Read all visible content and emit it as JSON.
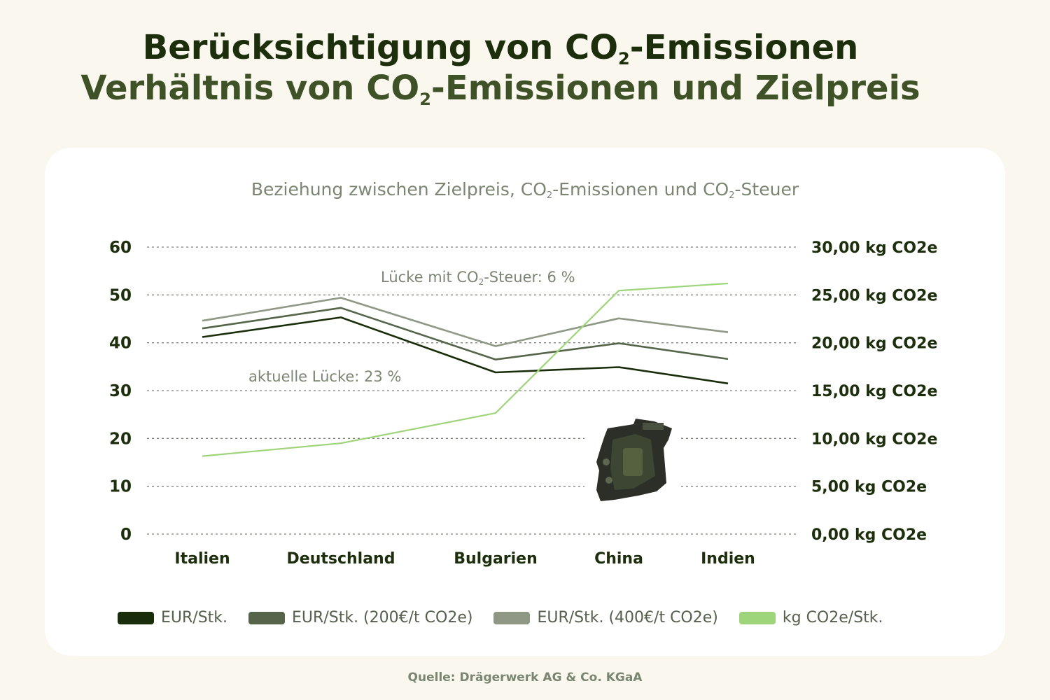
{
  "header": {
    "title_line1_pre": "Berücksichtigung von CO",
    "title_line1_sub": "2",
    "title_line1_post": "-Emissionen",
    "title_line2_pre": "Verhältnis von CO",
    "title_line2_sub": "2",
    "title_line2_post": "-Emissionen und Zielpreis"
  },
  "chart_subtitle": {
    "p1": "Beziehung zwischen Zielpreis, CO",
    "s1": "2",
    "p2": "-Emissionen und CO",
    "s2": "2",
    "p3": "-Steuer"
  },
  "annotations": {
    "tax_pre": "Lücke mit CO",
    "tax_sub": "2",
    "tax_post": "-Steuer: 6 %",
    "current": "aktuelle Lücke: 23 %"
  },
  "chart_data": {
    "type": "line",
    "categories": [
      "Italien",
      "Deutschland",
      "Bulgarien",
      "China",
      "Indien"
    ],
    "y_left": {
      "ylim": [
        0,
        60
      ],
      "ticks": [
        "0",
        "10",
        "20",
        "30",
        "40",
        "50",
        "60"
      ]
    },
    "y_right": {
      "ylim": [
        0,
        30
      ],
      "ticks": [
        "0,00 kg CO2e",
        "5,00 kg CO2e",
        "10,00 kg CO2e",
        "15,00 kg CO2e",
        "20,00 kg CO2e",
        "25,00 kg CO2e",
        "30,00 kg CO2e"
      ]
    },
    "series": [
      {
        "name": "EUR/Stk.",
        "axis": "left",
        "color": "#1a2d0a",
        "values": [
          41.2,
          45.3,
          33.8,
          34.9,
          31.5
        ]
      },
      {
        "name": "EUR/Stk. (200€/t CO2e)",
        "axis": "left",
        "color": "#56654a",
        "values": [
          43.0,
          47.3,
          36.5,
          39.9,
          36.6
        ]
      },
      {
        "name": "EUR/Stk. (400€/t CO2e)",
        "axis": "left",
        "color": "#8e9884",
        "values": [
          44.6,
          49.4,
          39.3,
          45.1,
          42.2
        ]
      },
      {
        "name": "kg CO2e/Stk.",
        "axis": "right",
        "color": "#9ed47a",
        "values": [
          8.15,
          9.5,
          12.65,
          25.45,
          26.2
        ]
      }
    ],
    "grid": true,
    "legend_position": "bottom"
  },
  "source": "Quelle: Drägerwerk AG & Co. KGaA",
  "product_image": "respirator-device-icon"
}
